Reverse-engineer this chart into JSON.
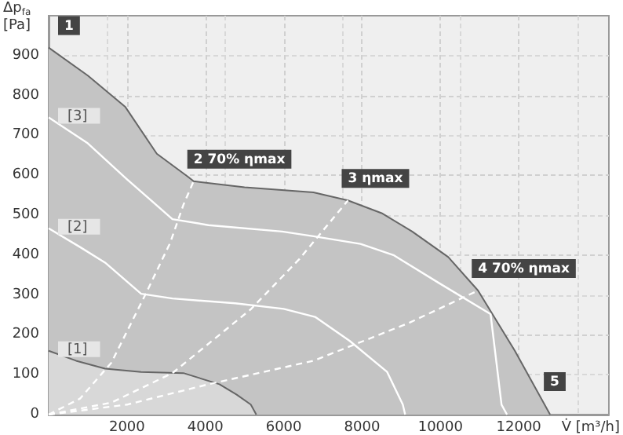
{
  "chart_data": {
    "type": "line",
    "xlabel": "V̇ [m³/h]",
    "ylabel": "Δp$_{fa}$ [Pa]",
    "xlim": [
      0,
      14300
    ],
    "ylim": [
      0,
      1000
    ],
    "xticks": [
      2000,
      4000,
      6000,
      8000,
      10000,
      12000
    ],
    "yticks": [
      0,
      100,
      200,
      300,
      400,
      500,
      600,
      700,
      800,
      900
    ],
    "grid": true,
    "marker": "none",
    "series": [
      {
        "type": "area",
        "color": "#c4c4c4",
        "x": [
          0,
          1000,
          1960,
          2760,
          3560,
          3700,
          5000,
          6760,
          7640,
          8500,
          9280,
          10200,
          10960,
          11900,
          12800
        ],
        "values": [
          920,
          850,
          771,
          654,
          596,
          585,
          570,
          557,
          537,
          505,
          459,
          395,
          311,
          160,
          0
        ]
      },
      {
        "type": "area",
        "color": "#d8d8d8",
        "x": [
          0,
          700,
          1440,
          2360,
          3440,
          4360,
          4800,
          5160,
          5300
        ],
        "values": [
          160,
          135,
          115,
          107,
          104,
          76,
          50,
          25,
          0
        ]
      },
      {
        "color": "#ffffff",
        "x": [
          0,
          800,
          1440,
          2360,
          3160,
          4760,
          6000,
          6800,
          7680,
          8640,
          9040,
          9100
        ],
        "values": [
          467,
          420,
          381,
          303,
          291,
          279,
          265,
          245,
          185,
          107,
          25,
          0
        ]
      },
      {
        "color": "#ffffff",
        "x": [
          0,
          1000,
          2000,
          3160,
          4080,
          5960,
          6760,
          7960,
          8800,
          9960,
          11280,
          11560,
          11700
        ],
        "values": [
          745,
          680,
          590,
          490,
          475,
          459,
          447,
          428,
          400,
          330,
          252,
          25,
          0
        ]
      },
      {
        "color": "#ffffff",
        "line_style": "dashed",
        "x": [
          0,
          800,
          1600,
          2480,
          3100,
          3440,
          3700
        ],
        "values": [
          0,
          40,
          130,
          303,
          430,
          526,
          585
        ]
      },
      {
        "color": "#ffffff",
        "line_style": "dashed",
        "x": [
          0,
          1600,
          3160,
          5160,
          6400,
          7640
        ],
        "values": [
          0,
          30,
          104,
          264,
          390,
          537
        ]
      },
      {
        "color": "#ffffff",
        "line_style": "dashed",
        "x": [
          0,
          2000,
          4080,
          6760,
          7560,
          9200,
          10960
        ],
        "values": [
          0,
          25,
          76,
          135,
          166,
          230,
          311
        ]
      }
    ],
    "annotations": [
      {
        "text": "1",
        "x": 0,
        "y": 920
      },
      {
        "text": "2 70% ηmax",
        "x": 3700,
        "y": 585
      },
      {
        "text": "3 ηmax",
        "x": 7640,
        "y": 537
      },
      {
        "text": "4 70% ηmax",
        "x": 10960,
        "y": 311
      },
      {
        "text": "5",
        "x": 12800,
        "y": 0
      },
      {
        "text": "[3]",
        "x": 0,
        "y": 745
      },
      {
        "text": "[2]",
        "x": 0,
        "y": 467
      },
      {
        "text": "[1]",
        "x": 0,
        "y": 160
      }
    ]
  }
}
